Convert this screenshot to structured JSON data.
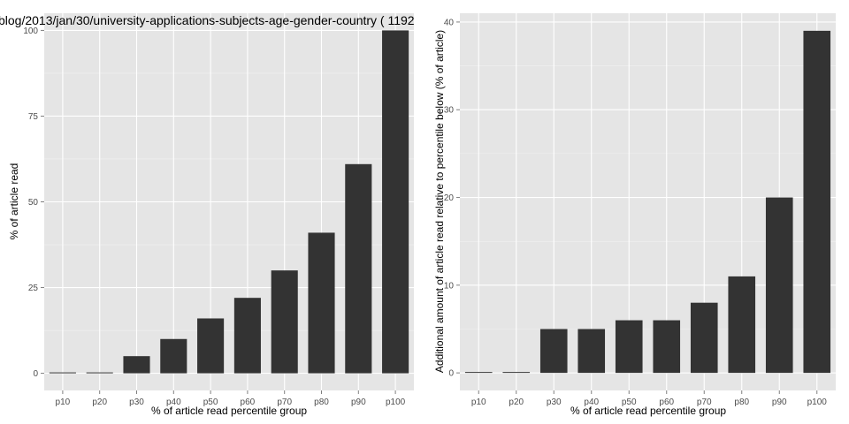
{
  "colors": {
    "panel_background": "#e5e5e5",
    "grid_major": "#ffffff",
    "grid_minor": "#f2f2f2",
    "bar_fill": "#333333",
    "tick_color": "#7f7f7f"
  },
  "chart_data": [
    {
      "type": "bar",
      "title": "blog/2013/jan/30/university-applications-subjects-age-gender-country ( 1192",
      "xlabel": "% of article read percentile group",
      "ylabel": "% of article read",
      "categories": [
        "p10",
        "p20",
        "p30",
        "p40",
        "p50",
        "p60",
        "p70",
        "p80",
        "p90",
        "p100"
      ],
      "values": [
        0,
        0,
        5,
        10,
        16,
        22,
        30,
        41,
        61,
        100
      ],
      "ylim": [
        -5,
        105
      ],
      "yticks": [
        0,
        25,
        50,
        75,
        100
      ],
      "ytick_labels": [
        "0",
        "25",
        "50",
        "75",
        "100"
      ],
      "grid": true
    },
    {
      "type": "bar",
      "title": "",
      "xlabel": "% of article read percentile group",
      "ylabel": "Additional amount of article read relative to percentile below (% of article)",
      "categories": [
        "p10",
        "p20",
        "p30",
        "p40",
        "p50",
        "p60",
        "p70",
        "p80",
        "p90",
        "p100"
      ],
      "values": [
        0,
        0,
        5,
        5,
        6,
        6,
        8,
        11,
        20,
        39
      ],
      "ylim": [
        -2,
        41
      ],
      "yticks": [
        0,
        10,
        20,
        30,
        40
      ],
      "ytick_labels": [
        "0",
        "10",
        "20",
        "30",
        "40"
      ],
      "grid": true
    }
  ]
}
